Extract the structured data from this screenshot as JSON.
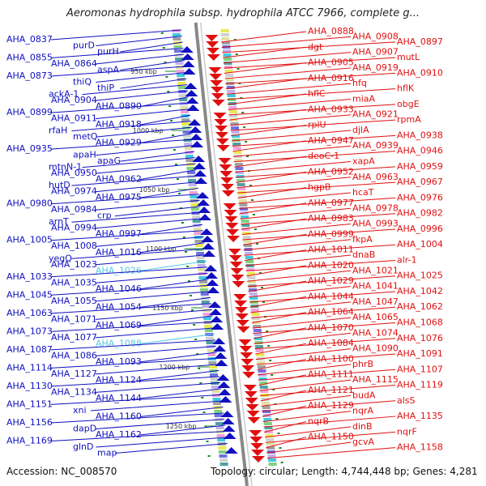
{
  "title": "Aeromonas hydrophila subsp. hydrophila ATCC 7966, complete g...",
  "accession": "Accession: NC_008570",
  "topology": "Topology: circular; Length: 4,744,448 bp; Genes: 4,281",
  "colors": {
    "left_genes": "#1010c0",
    "left_highlight": "#55c8e8",
    "right_genes": "#e01010",
    "backbone": "#888888",
    "tick": "#1a8a1a"
  },
  "kbp_labels": [
    "950 kbp",
    "1000 kbp",
    "1050 kbp",
    "1100 kbp",
    "1150 kbp",
    "1200 kbp",
    "1250 kbp"
  ],
  "left_labels": [
    "AHA_0837",
    "purD",
    "purH",
    "AHA_0855",
    "AHA_0864",
    "aspA",
    "AHA_0873",
    "thiQ",
    "thiP",
    "ackA-1",
    "AHA_0904",
    "AHA_0890",
    "AHA_0899",
    "AHA_0911",
    "AHA_0918",
    "rfaH",
    "metQ",
    "AHA_0929",
    "AHA_0935",
    "apaH",
    "apaG",
    "mtnN-1",
    "AHA_0950",
    "AHA_0962",
    "hutD",
    "AHA_0974",
    "AHA_0975",
    "AHA_0980",
    "AHA_0984",
    "crp",
    "arnT",
    "AHA_0994",
    "AHA_0997",
    "AHA_1005",
    "AHA_1008",
    "AHA_1016",
    "yegQ",
    "AHA_1023",
    "AHA_1026",
    "AHA_1033",
    "AHA_1035",
    "AHA_1046",
    "AHA_1045",
    "AHA_1055",
    "AHA_1054",
    "AHA_1063",
    "AHA_1071",
    "AHA_1069",
    "AHA_1073",
    "AHA_1077",
    "AHA_1088",
    "AHA_1087",
    "AHA_1086",
    "AHA_1093",
    "AHA_1114",
    "AHA_1127",
    "AHA_1124",
    "AHA_1130",
    "AHA_1134",
    "AHA_1144",
    "AHA_1151",
    "xni",
    "AHA_1160",
    "AHA_1156",
    "dapD",
    "AHA_1162",
    "AHA_1169",
    "glnD",
    "map"
  ],
  "right_labels": [
    "AHA_0888",
    "AHA_0908",
    "AHA_0897",
    "dgt",
    "AHA_0907",
    "mutL",
    "AHA_0905",
    "AHA_0919",
    "AHA_0910",
    "AHA_0916",
    "hfq",
    "hflK",
    "hflC",
    "miaA",
    "obgE",
    "AHA_0933",
    "AHA_0921",
    "rpmA",
    "rplU",
    "djlA",
    "AHA_0938",
    "AHA_0947",
    "AHA_0939",
    "AHA_0946",
    "deoC-1",
    "xapA",
    "AHA_0959",
    "AHA_0952",
    "AHA_0963",
    "AHA_0967",
    "hgpB",
    "hcaT",
    "AHA_0976",
    "AHA_0977",
    "AHA_0978",
    "AHA_0982",
    "AHA_0983",
    "AHA_0993",
    "AHA_0996",
    "AHA_0999",
    "fkpA",
    "AHA_1004",
    "AHA_1011",
    "dnaB",
    "alr-1",
    "AHA_1020",
    "AHA_1021",
    "AHA_1025",
    "AHA_1029",
    "AHA_1041",
    "AHA_1042",
    "AHA_1044",
    "AHA_1047",
    "AHA_1062",
    "AHA_1064",
    "AHA_1065",
    "AHA_1068",
    "AHA_1070",
    "AHA_1074",
    "AHA_1076",
    "AHA_1084",
    "AHA_1090",
    "AHA_1091",
    "AHA_1100",
    "phrB",
    "AHA_1107",
    "AHA_1111",
    "AHA_1115",
    "AHA_1119",
    "AHA_1121",
    "budA",
    "alsS",
    "AHA_1129",
    "nqrA",
    "AHA_1135",
    "nqrB",
    "dinB",
    "nqrF",
    "AHA_1150",
    "gcvA",
    "AHA_1158"
  ]
}
